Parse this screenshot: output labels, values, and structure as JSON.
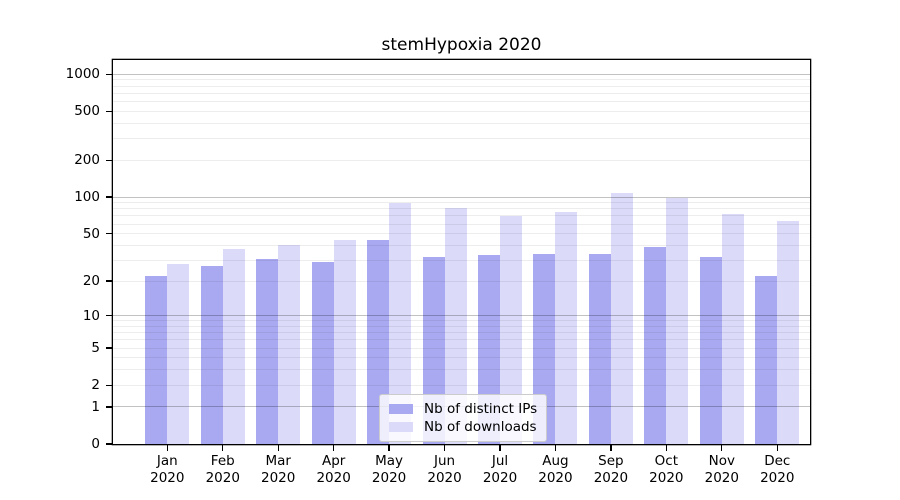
{
  "title": "stemHypoxia 2020",
  "chart_data": {
    "type": "bar",
    "title": "stemHypoxia 2020",
    "categories": [
      "Jan",
      "Feb",
      "Mar",
      "Apr",
      "May",
      "Jun",
      "Jul",
      "Aug",
      "Sep",
      "Oct",
      "Nov",
      "Dec"
    ],
    "category_year": "2020",
    "series": [
      {
        "name": "Nb of distinct IPs",
        "color": "#a9a9f2",
        "values": [
          22,
          27,
          31,
          29,
          44,
          32,
          33,
          34,
          34,
          39,
          32,
          22
        ]
      },
      {
        "name": "Nb of downloads",
        "color": "#dbdbf9",
        "values": [
          28,
          37,
          40,
          44,
          89,
          82,
          70,
          75,
          109,
          98,
          72,
          63
        ]
      }
    ],
    "yscale": "log1p",
    "y_ticks": [
      0,
      1,
      2,
      5,
      10,
      20,
      50,
      100,
      200,
      500,
      1000
    ],
    "ylim": [
      0,
      1308
    ],
    "xlabel": "",
    "ylabel": "",
    "grid": true,
    "legend_position": "lower center"
  }
}
